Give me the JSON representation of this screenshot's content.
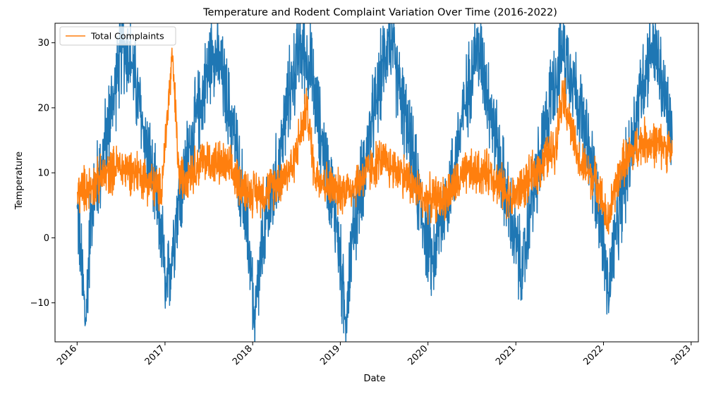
{
  "chart_data": {
    "type": "line",
    "title": "Temperature and Rodent Complaint Variation Over Time (2016-2022)",
    "xlabel": "Date",
    "ylabel": "Temperature",
    "xlim": [
      "2015-10-01",
      "2023-01-31"
    ],
    "ylim": [
      -16,
      33
    ],
    "x_ticks": [
      "2016",
      "2017",
      "2018",
      "2019",
      "2020",
      "2021",
      "2022",
      "2023"
    ],
    "y_ticks": [
      -10,
      0,
      10,
      20,
      30
    ],
    "grid": false,
    "legend": {
      "placement": "top-left",
      "entries": [
        "Total Complaints"
      ]
    },
    "date_range": [
      "2016-01-01",
      "2022-10-15"
    ],
    "series": [
      {
        "name": "",
        "color": "#1f77b4",
        "description_keypoints": [
          [
            "2016-01-01",
            5
          ],
          [
            "2016-01-15",
            -2
          ],
          [
            "2016-02-05",
            -13.3
          ],
          [
            "2016-03-01",
            5
          ],
          [
            "2016-04-15",
            12
          ],
          [
            "2016-06-01",
            22
          ],
          [
            "2016-07-10",
            29.5
          ],
          [
            "2016-08-15",
            27
          ],
          [
            "2016-10-01",
            17
          ],
          [
            "2016-11-15",
            8
          ],
          [
            "2016-12-20",
            0
          ],
          [
            "2017-01-05",
            -9.7
          ],
          [
            "2017-02-15",
            3
          ],
          [
            "2017-04-15",
            14
          ],
          [
            "2017-06-01",
            21
          ],
          [
            "2017-07-20",
            29.5
          ],
          [
            "2017-08-20",
            26
          ],
          [
            "2017-10-15",
            16
          ],
          [
            "2017-11-15",
            8
          ],
          [
            "2017-12-28",
            -5
          ],
          [
            "2018-01-07",
            -13.8
          ],
          [
            "2018-02-15",
            0
          ],
          [
            "2018-04-15",
            10
          ],
          [
            "2018-06-01",
            22
          ],
          [
            "2018-07-15",
            29
          ],
          [
            "2018-08-25",
            27
          ],
          [
            "2018-10-15",
            15
          ],
          [
            "2018-12-15",
            3
          ],
          [
            "2019-01-21",
            -12.6
          ],
          [
            "2019-02-20",
            0
          ],
          [
            "2019-04-15",
            12
          ],
          [
            "2019-06-01",
            21
          ],
          [
            "2019-07-20",
            31.2
          ],
          [
            "2019-08-20",
            26
          ],
          [
            "2019-10-15",
            15
          ],
          [
            "2019-12-15",
            2
          ],
          [
            "2020-01-20",
            -4
          ],
          [
            "2020-02-20",
            2
          ],
          [
            "2020-04-15",
            10
          ],
          [
            "2020-06-01",
            20
          ],
          [
            "2020-07-20",
            29.5
          ],
          [
            "2020-08-20",
            26
          ],
          [
            "2020-10-15",
            14
          ],
          [
            "2020-12-15",
            2
          ],
          [
            "2021-01-30",
            -6
          ],
          [
            "2021-03-01",
            5
          ],
          [
            "2021-04-15",
            12
          ],
          [
            "2021-06-01",
            23
          ],
          [
            "2021-07-15",
            29
          ],
          [
            "2021-08-20",
            26
          ],
          [
            "2021-10-15",
            16
          ],
          [
            "2021-12-15",
            5
          ],
          [
            "2022-01-20",
            -8.6
          ],
          [
            "2022-02-20",
            0
          ],
          [
            "2022-04-15",
            12
          ],
          [
            "2022-06-01",
            22
          ],
          [
            "2022-07-20",
            30
          ],
          [
            "2022-08-20",
            26
          ],
          [
            "2022-10-15",
            15
          ]
        ]
      },
      {
        "name": "Total Complaints",
        "color": "#ff7f0e",
        "description_keypoints": [
          [
            "2016-01-01",
            7
          ],
          [
            "2016-03-01",
            8
          ],
          [
            "2016-06-15",
            11
          ],
          [
            "2016-09-15",
            10
          ],
          [
            "2016-12-15",
            7
          ],
          [
            "2017-02-01",
            27.8
          ],
          [
            "2017-03-01",
            9
          ],
          [
            "2017-06-15",
            12
          ],
          [
            "2017-09-15",
            11
          ],
          [
            "2017-12-15",
            7
          ],
          [
            "2018-03-01",
            7
          ],
          [
            "2018-06-15",
            11
          ],
          [
            "2018-08-15",
            20
          ],
          [
            "2018-09-15",
            10
          ],
          [
            "2018-12-15",
            7
          ],
          [
            "2019-03-01",
            8
          ],
          [
            "2019-06-15",
            12
          ],
          [
            "2019-09-15",
            10
          ],
          [
            "2019-12-15",
            6
          ],
          [
            "2020-03-01",
            6
          ],
          [
            "2020-06-15",
            10
          ],
          [
            "2020-09-15",
            10
          ],
          [
            "2020-12-15",
            6
          ],
          [
            "2021-03-01",
            9
          ],
          [
            "2021-06-15",
            14
          ],
          [
            "2021-07-15",
            23
          ],
          [
            "2021-09-15",
            12
          ],
          [
            "2021-12-15",
            8
          ],
          [
            "2022-01-15",
            2
          ],
          [
            "2022-03-15",
            11
          ],
          [
            "2022-06-15",
            15
          ],
          [
            "2022-09-15",
            14
          ],
          [
            "2022-10-15",
            13
          ]
        ]
      }
    ]
  }
}
